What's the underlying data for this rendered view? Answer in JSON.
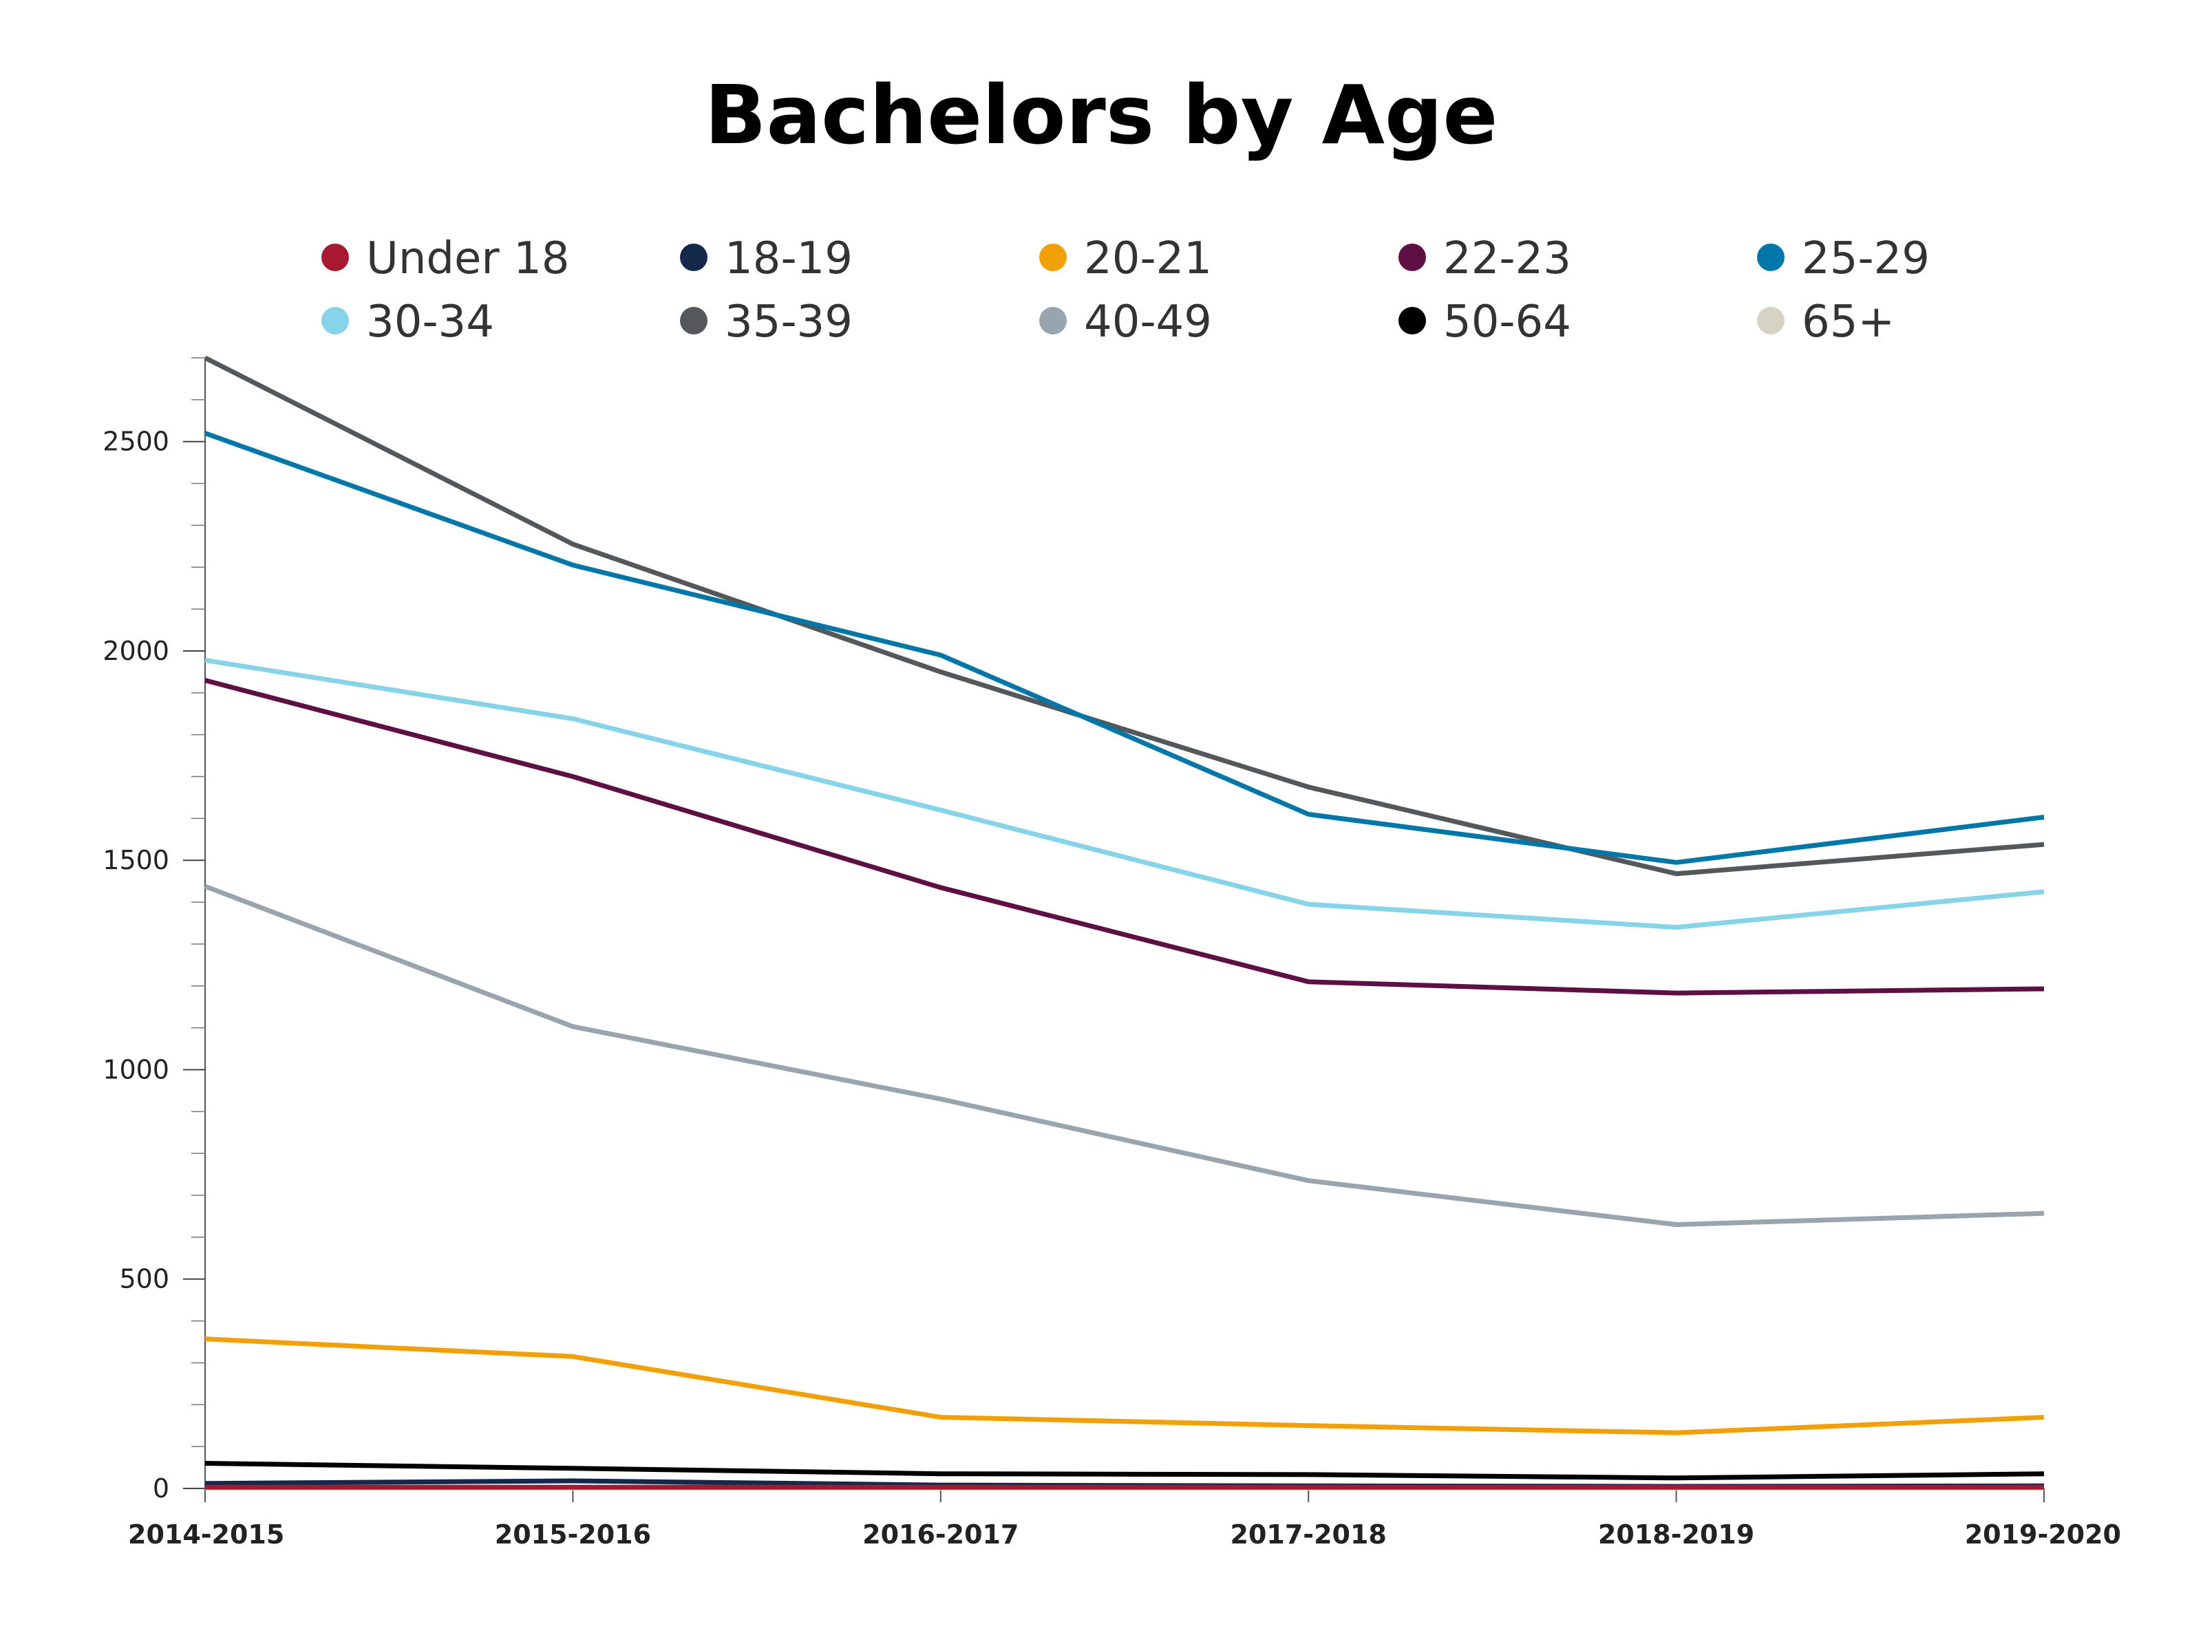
{
  "chart_data": {
    "type": "line",
    "title": "Bachelors by Age",
    "xlabel": "",
    "ylabel": "",
    "categories": [
      "2014-2015",
      "2015-2016",
      "2016-2017",
      "2017-2018",
      "2018-2019",
      "2019-2020"
    ],
    "ylim": [
      0,
      2700
    ],
    "yticks": [
      "0",
      "500",
      "1000",
      "1500",
      "2000",
      "2500"
    ],
    "grid": false,
    "legend_position": "top",
    "series": [
      {
        "name": "Under 18",
        "color": "#a6192e",
        "values": [
          3,
          3,
          3,
          3,
          3,
          3
        ]
      },
      {
        "name": "18-19",
        "color": "#14284b",
        "values": [
          12,
          18,
          8,
          6,
          5,
          6
        ]
      },
      {
        "name": "20-21",
        "color": "#f2a007",
        "values": [
          357,
          315,
          170,
          150,
          133,
          170
        ]
      },
      {
        "name": "22-23",
        "color": "#5e1044",
        "values": [
          1930,
          1700,
          1435,
          1210,
          1183,
          1193
        ]
      },
      {
        "name": "25-29",
        "color": "#0077a8",
        "values": [
          2520,
          2205,
          1990,
          1610,
          1495,
          1603
        ]
      },
      {
        "name": "30-34",
        "color": "#87d3ea",
        "values": [
          1978,
          1838,
          1620,
          1395,
          1340,
          1425
        ]
      },
      {
        "name": "35-39",
        "color": "#54585a",
        "values": [
          2700,
          2255,
          1950,
          1675,
          1468,
          1538
        ]
      },
      {
        "name": "40-49",
        "color": "#98a4ae",
        "values": [
          1438,
          1103,
          930,
          735,
          630,
          657
        ]
      },
      {
        "name": "50-64",
        "color": "#000000",
        "values": [
          60,
          48,
          35,
          33,
          25,
          35
        ]
      },
      {
        "name": "65+",
        "color": "#d6d2c4",
        "values": [
          1,
          1,
          1,
          1,
          1,
          1
        ]
      }
    ]
  }
}
